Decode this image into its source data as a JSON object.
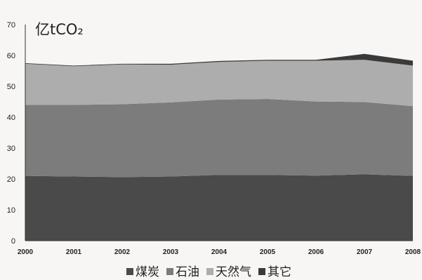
{
  "chart_data": {
    "type": "area",
    "stacked": true,
    "unit_label": "亿tCO₂",
    "x": [
      "2000",
      "2001",
      "2002",
      "2003",
      "2004",
      "2005",
      "2006",
      "2007",
      "2008"
    ],
    "ylim": [
      0,
      70
    ],
    "yticks": [
      0,
      10,
      20,
      30,
      40,
      50,
      60,
      70
    ],
    "grid": false,
    "legend_position": "bottom",
    "series": [
      {
        "name": "煤炭",
        "color": "#4a4a4a",
        "values": [
          21.0,
          20.8,
          20.6,
          20.8,
          21.3,
          21.3,
          21.1,
          21.5,
          21.0
        ]
      },
      {
        "name": "石油",
        "color": "#7c7c7c",
        "values": [
          23.0,
          23.2,
          23.6,
          24.0,
          24.4,
          24.6,
          24.0,
          23.4,
          22.6
        ]
      },
      {
        "name": "天然气",
        "color": "#adadad",
        "values": [
          13.3,
          12.5,
          12.9,
          12.2,
          12.2,
          12.4,
          13.2,
          13.7,
          13.1
        ]
      },
      {
        "name": "其它",
        "color": "#3a3a3a",
        "values": [
          0.2,
          0.2,
          0.2,
          0.3,
          0.3,
          0.3,
          0.3,
          1.9,
          1.6
        ]
      }
    ]
  }
}
